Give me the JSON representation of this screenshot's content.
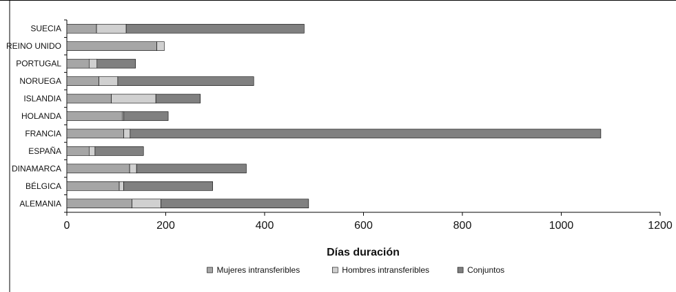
{
  "chart_data": {
    "type": "bar",
    "orientation": "horizontal",
    "stacked": true,
    "categories": [
      "SUECIA",
      "REINO UNIDO",
      "PORTUGAL",
      "NORUEGA",
      "ISLANDIA",
      "HOLANDA",
      "FRANCIA",
      "ESPAÑA",
      "DINAMARCA",
      "BÉLGICA",
      "ALEMANIA"
    ],
    "series": [
      {
        "name": "Mujeres intransferibles",
        "color": "#a6a6a6",
        "values": [
          60,
          182,
          45,
          65,
          90,
          112,
          115,
          45,
          127,
          106,
          132
        ]
      },
      {
        "name": "Hombres intransferibles",
        "color": "#d0d0d0",
        "values": [
          60,
          15,
          16,
          38,
          90,
          3,
          13,
          12,
          14,
          9,
          58
        ]
      },
      {
        "name": "Conjuntos",
        "color": "#808080",
        "values": [
          360,
          0,
          78,
          275,
          90,
          90,
          952,
          98,
          222,
          180,
          299
        ]
      }
    ],
    "xlim": [
      0,
      1200
    ],
    "xticks": [
      "0",
      "200",
      "400",
      "600",
      "800",
      "1000",
      "1200"
    ],
    "xlabel": "Días duración",
    "legend": "bottom",
    "grid": false
  }
}
